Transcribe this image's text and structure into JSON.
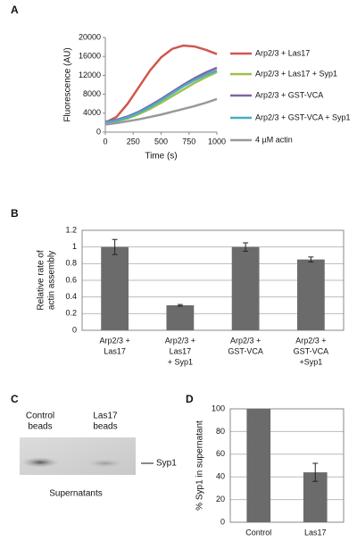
{
  "chart_data": [
    {
      "type": "line",
      "panel": "A",
      "xlabel": "Time (s)",
      "ylabel": "Fluorescence (AU)",
      "x": [
        0,
        100,
        200,
        300,
        400,
        500,
        600,
        700,
        800,
        900,
        1000
      ],
      "xlim": [
        0,
        1000
      ],
      "xticks": [
        0,
        250,
        500,
        750,
        1000
      ],
      "ylim": [
        0,
        20000
      ],
      "yticks": [
        0,
        4000,
        8000,
        12000,
        16000,
        20000
      ],
      "grid": false,
      "series": [
        {
          "name": "Arp2/3 + Las17",
          "color": "#d0574e",
          "values": [
            2000,
            3200,
            6000,
            9500,
            13000,
            15800,
            17600,
            18300,
            18100,
            17400,
            16500
          ]
        },
        {
          "name": "Arp2/3 + Las17 + Syp1",
          "color": "#9bc04f",
          "values": [
            2000,
            2300,
            2900,
            3800,
            4900,
            6200,
            7600,
            9000,
            10400,
            11600,
            12700
          ]
        },
        {
          "name": "Arp2/3 + GST-VCA",
          "color": "#8064a2",
          "values": [
            2200,
            2600,
            3300,
            4300,
            5600,
            7000,
            8500,
            10000,
            11400,
            12600,
            13600
          ]
        },
        {
          "name": "Arp2/3 + GST-VCA + Syp1",
          "color": "#4bacc6",
          "values": [
            2000,
            2400,
            3100,
            4100,
            5300,
            6700,
            8200,
            9700,
            11000,
            12100,
            13000
          ]
        },
        {
          "name": "4 µM actin",
          "color": "#999999",
          "values": [
            1600,
            1900,
            2300,
            2700,
            3200,
            3700,
            4300,
            4900,
            5500,
            6200,
            7000
          ]
        }
      ]
    },
    {
      "type": "bar",
      "panel": "B",
      "ylabel": [
        "Relative rate of",
        "actin assembly"
      ],
      "categories": [
        [
          "Arp2/3 +",
          "Las17"
        ],
        [
          "Arp2/3 +",
          "Las17",
          "+ Syp1"
        ],
        [
          "Arp2/3 +",
          "GST-VCA"
        ],
        [
          "Arp2/3 +",
          "GST-VCA",
          "+Syp1"
        ]
      ],
      "values": [
        1,
        0.3,
        1,
        0.85
      ],
      "errors": [
        0.09,
        0.01,
        0.05,
        0.03
      ],
      "color": "#6b6b6b",
      "ylim": [
        0,
        1.2
      ],
      "yticks": [
        0,
        0.2,
        0.4,
        0.6,
        0.8,
        1,
        1.2
      ],
      "grid": true
    },
    {
      "type": "bar",
      "panel": "D",
      "ylabel": [
        "% Syp1 in supernatant"
      ],
      "categories": [
        [
          "Control"
        ],
        [
          "Las17"
        ]
      ],
      "values": [
        100,
        44
      ],
      "errors": [
        null,
        8
      ],
      "color": "#6b6b6b",
      "ylim": [
        0,
        100
      ],
      "yticks": [
        0,
        20,
        40,
        60,
        80,
        100
      ],
      "grid": true
    }
  ],
  "gel": {
    "panel": "C",
    "lanes": [
      [
        "Control",
        "beads"
      ],
      [
        "Las17",
        "beads"
      ]
    ],
    "band_label": "Syp1",
    "caption": "Supernatants"
  }
}
